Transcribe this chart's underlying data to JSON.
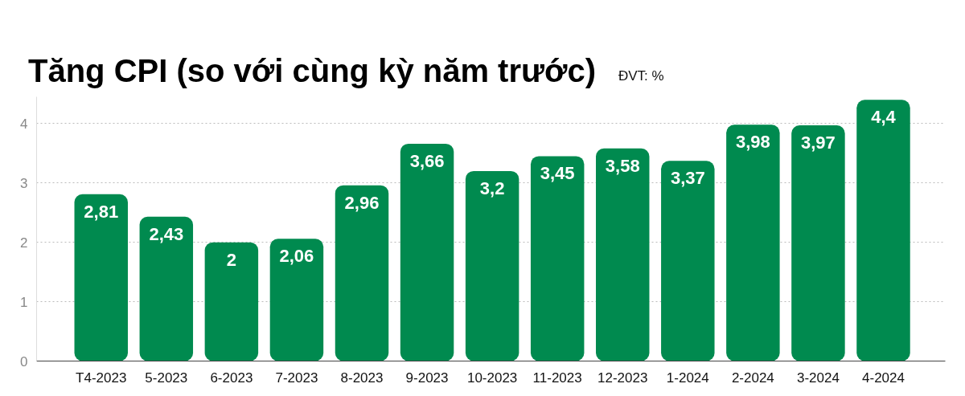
{
  "chart_data": {
    "type": "bar",
    "title": "Tăng CPI (so với cùng kỳ năm trước)",
    "subtitle": "ĐVT: %",
    "categories": [
      "T4-2023",
      "5-2023",
      "6-2023",
      "7-2023",
      "8-2023",
      "9-2023",
      "10-2023",
      "11-2023",
      "12-2023",
      "1-2024",
      "2-2024",
      "3-2024",
      "4-2024"
    ],
    "values": [
      2.81,
      2.43,
      2,
      2.06,
      2.96,
      3.66,
      3.2,
      3.45,
      3.58,
      3.37,
      3.98,
      3.97,
      4.4
    ],
    "value_labels": [
      "2,81",
      "2,43",
      "2",
      "2,06",
      "2,96",
      "3,66",
      "3,2",
      "3,45",
      "3,58",
      "3,37",
      "3,98",
      "3,97",
      "4,4"
    ],
    "color": "#008a4f",
    "ylim": [
      0,
      4.45
    ],
    "yticks": [
      0,
      1,
      2,
      3,
      4
    ],
    "grid": "y"
  }
}
